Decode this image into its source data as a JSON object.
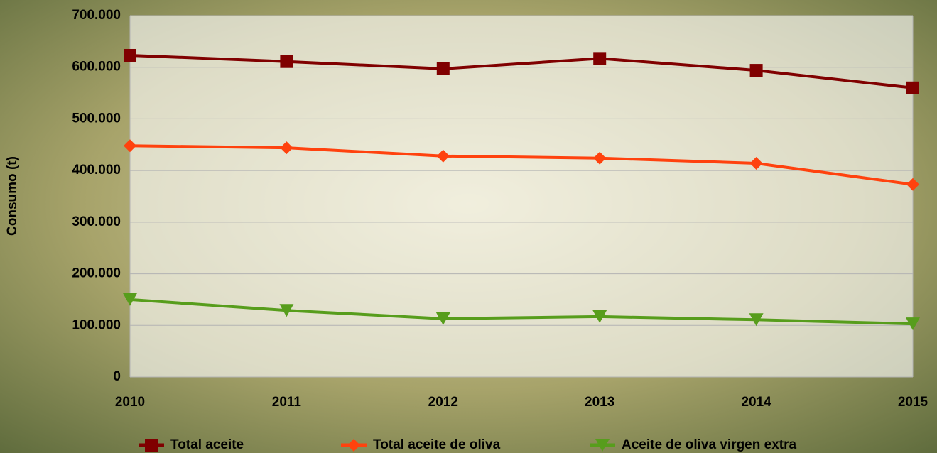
{
  "chart_data": {
    "type": "line",
    "y_label": "Consumo (t)",
    "x": [
      2010,
      2011,
      2012,
      2013,
      2014,
      2015
    ],
    "xlim": [
      2010,
      2015
    ],
    "xticks": [
      2010,
      2011,
      2012,
      2013,
      2014,
      2015
    ],
    "ylim": [
      0,
      700000
    ],
    "yticks": [
      0,
      {
        "value": 100000,
        "label": "100.000"
      },
      {
        "value": 200000,
        "label": "200.000"
      },
      {
        "value": 300000,
        "label": "300.000"
      },
      {
        "value": 400000,
        "label": "400.000"
      },
      {
        "value": 500000,
        "label": "500.000"
      },
      {
        "value": 600000,
        "label": "600.000"
      },
      {
        "value": 700000,
        "label": "700.000"
      }
    ],
    "grid": true,
    "legend": "bottom",
    "series": [
      {
        "name": "Total aceite",
        "color": "#800000",
        "marker": "square",
        "values": [
          623000,
          611000,
          597000,
          617000,
          594000,
          560000
        ]
      },
      {
        "name": "Total aceite de oliva",
        "color": "#ff420e",
        "marker": "diamond",
        "values": [
          448000,
          444000,
          428000,
          424000,
          414000,
          373000
        ]
      },
      {
        "name": "Aceite de oliva virgen extra",
        "color": "#579d1c",
        "marker": "triangle-down",
        "values": [
          150000,
          129000,
          113000,
          117000,
          111000,
          103000
        ]
      }
    ]
  }
}
